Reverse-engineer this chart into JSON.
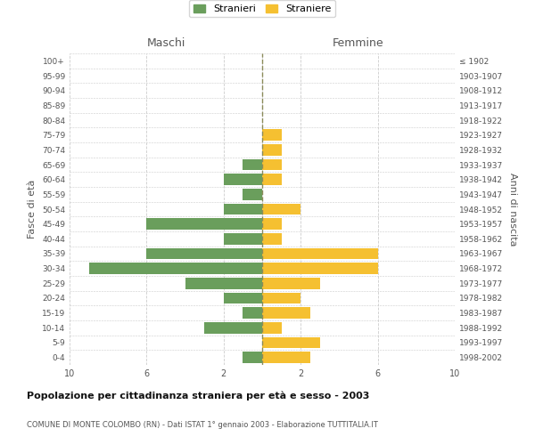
{
  "age_groups": [
    "0-4",
    "5-9",
    "10-14",
    "15-19",
    "20-24",
    "25-29",
    "30-34",
    "35-39",
    "40-44",
    "45-49",
    "50-54",
    "55-59",
    "60-64",
    "65-69",
    "70-74",
    "75-79",
    "80-84",
    "85-89",
    "90-94",
    "95-99",
    "100+"
  ],
  "birth_years": [
    "1998-2002",
    "1993-1997",
    "1988-1992",
    "1983-1987",
    "1978-1982",
    "1973-1977",
    "1968-1972",
    "1963-1967",
    "1958-1962",
    "1953-1957",
    "1948-1952",
    "1943-1947",
    "1938-1942",
    "1933-1937",
    "1928-1932",
    "1923-1927",
    "1918-1922",
    "1913-1917",
    "1908-1912",
    "1903-1907",
    "≤ 1902"
  ],
  "maschi": [
    1,
    0,
    3,
    1,
    2,
    4,
    9,
    6,
    2,
    6,
    2,
    1,
    2,
    1,
    0,
    0,
    0,
    0,
    0,
    0,
    0
  ],
  "femmine": [
    2.5,
    3,
    1,
    2.5,
    2,
    3,
    6,
    6,
    1,
    1,
    2,
    0,
    1,
    1,
    1,
    1,
    0,
    0,
    0,
    0,
    0
  ],
  "color_maschi": "#6a9e5c",
  "color_femmine": "#f5c031",
  "dashed_line_color": "#8b8b5a",
  "background_color": "#ffffff",
  "grid_color": "#cccccc",
  "title": "Popolazione per cittadinanza straniera per età e sesso - 2003",
  "subtitle": "COMUNE DI MONTE COLOMBO (RN) - Dati ISTAT 1° gennaio 2003 - Elaborazione TUTTITALIA.IT",
  "xlabel_left": "Maschi",
  "xlabel_right": "Femmine",
  "ylabel_left": "Fasce di età",
  "ylabel_right": "Anni di nascita",
  "legend_maschi": "Stranieri",
  "legend_femmine": "Straniere",
  "xlim": 10,
  "xtick_positions": [
    -10,
    -6,
    -2,
    2,
    6,
    10
  ],
  "xtick_labels": [
    "10",
    "6",
    "2",
    "2",
    "6",
    "10"
  ]
}
